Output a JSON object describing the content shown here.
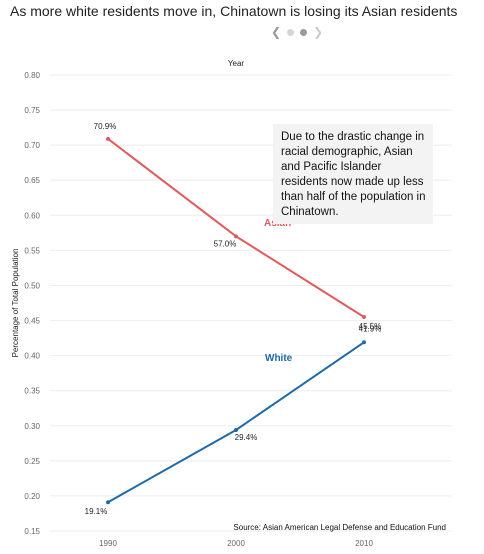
{
  "title": "As more white residents move in, Chinatown is losing its Asian residents",
  "pager": {
    "prev_icon": "chevron-left-icon",
    "next_icon": "chevron-right-icon",
    "pages": 2,
    "active_page": 2
  },
  "annotation": "Due to the drastic change in racial demographic, Asian and Pacific Islander residents now made up less than half of the population in Chinatown.",
  "source": "Source: Asian American Legal Defense and Education Fund",
  "chart_data": {
    "type": "line",
    "title": "Year",
    "xlabel": "",
    "ylabel": "Percentage of Total Population",
    "categories": [
      "1990",
      "2000",
      "2010"
    ],
    "ylim": [
      0.15,
      0.8
    ],
    "yticks": [
      "0.15",
      "0.20",
      "0.25",
      "0.30",
      "0.35",
      "0.40",
      "0.45",
      "0.50",
      "0.55",
      "0.60",
      "0.65",
      "0.70",
      "0.75",
      "0.80"
    ],
    "grid": true,
    "series": [
      {
        "name": "Asian",
        "color": "#e05a5d",
        "values": [
          0.709,
          0.57,
          0.455
        ],
        "labels": [
          "70.9%",
          "57.0%",
          "45.5%"
        ]
      },
      {
        "name": "White",
        "color": "#1f6aa8",
        "values": [
          0.191,
          0.294,
          0.419
        ],
        "labels": [
          "19.1%",
          "29.4%",
          "41.9%"
        ]
      }
    ]
  }
}
